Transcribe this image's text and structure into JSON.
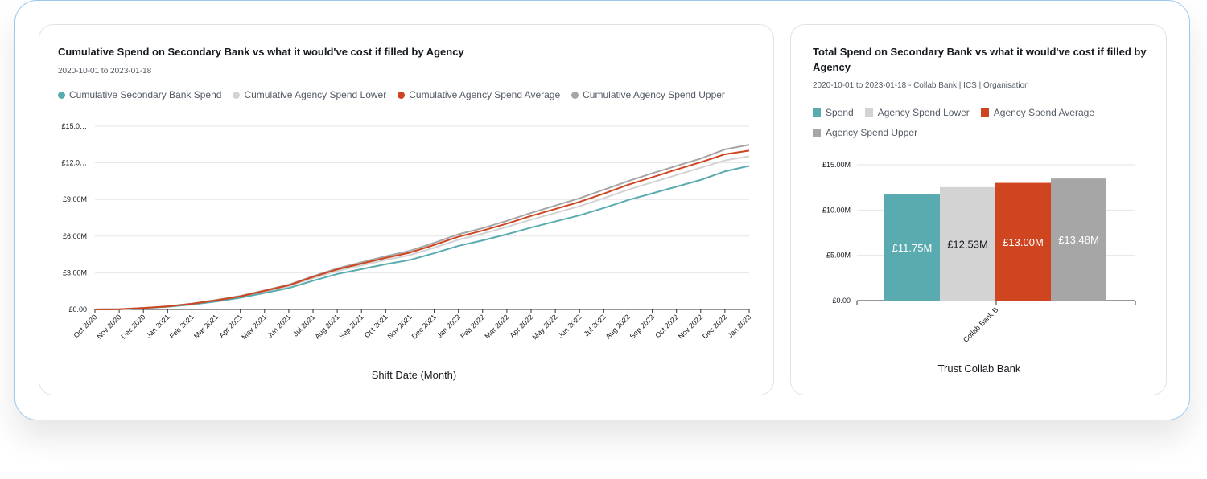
{
  "colors": {
    "spend": "#5aabb0",
    "lower": "#d3d3d3",
    "average": "#cf4520",
    "upper": "#a6a6a6",
    "grid": "#e6e6e6",
    "axis": "#333333"
  },
  "chart_data": [
    {
      "type": "line",
      "title": "Cumulative Spend on Secondary Bank vs what it would've cost if filled by Agency",
      "subtitle": "2020-10-01 to 2023-01-18",
      "xlabel": "Shift Date (Month)",
      "ylabel": "",
      "legend_position": "top-left",
      "grid": true,
      "ylim": [
        0,
        15
      ],
      "y_tick_values": [
        0,
        3,
        6,
        9,
        12,
        15
      ],
      "y_tick_labels": [
        "£0.00",
        "£3.00M",
        "£6.00M",
        "£9.00M",
        "£12.0…",
        "£15.0…"
      ],
      "x": [
        "Oct 2020",
        "Nov 2020",
        "Dec 2020",
        "Jan 2021",
        "Feb 2021",
        "Mar 2021",
        "Apr 2021",
        "May 2021",
        "Jun 2021",
        "Jul 2021",
        "Aug 2021",
        "Sep 2021",
        "Oct 2021",
        "Nov 2021",
        "Dec 2021",
        "Jan 2022",
        "Feb 2022",
        "Mar 2022",
        "Apr 2022",
        "May 2022",
        "Jun 2022",
        "Jul 2022",
        "Aug 2022",
        "Sep 2022",
        "Oct 2022",
        "Nov 2022",
        "Dec 2022",
        "Jan 2023"
      ],
      "series": [
        {
          "name": "Cumulative Secondary Bank Spend",
          "color_key": "spend",
          "marker": "dot",
          "values": [
            0.0,
            0.02,
            0.1,
            0.22,
            0.4,
            0.65,
            0.95,
            1.35,
            1.75,
            2.35,
            2.9,
            3.3,
            3.7,
            4.05,
            4.6,
            5.2,
            5.65,
            6.15,
            6.7,
            7.2,
            7.7,
            8.3,
            8.95,
            9.5,
            10.05,
            10.6,
            11.3,
            11.75
          ]
        },
        {
          "name": "Cumulative Agency Spend Lower",
          "color_key": "lower",
          "marker": "dot",
          "values": [
            0.0,
            0.02,
            0.11,
            0.24,
            0.44,
            0.7,
            1.02,
            1.45,
            1.9,
            2.55,
            3.15,
            3.6,
            4.05,
            4.45,
            5.05,
            5.7,
            6.2,
            6.75,
            7.35,
            7.9,
            8.45,
            9.1,
            9.8,
            10.4,
            11.0,
            11.6,
            12.2,
            12.53
          ]
        },
        {
          "name": "Cumulative Agency Spend Average",
          "color_key": "average",
          "marker": "dot",
          "values": [
            0.0,
            0.02,
            0.12,
            0.25,
            0.46,
            0.74,
            1.07,
            1.52,
            1.98,
            2.66,
            3.28,
            3.75,
            4.22,
            4.65,
            5.28,
            5.95,
            6.45,
            7.02,
            7.65,
            8.22,
            8.8,
            9.48,
            10.2,
            10.82,
            11.45,
            12.05,
            12.7,
            13.0
          ]
        },
        {
          "name": "Cumulative Agency Spend Upper",
          "color_key": "upper",
          "marker": "dot",
          "values": [
            0.0,
            0.02,
            0.12,
            0.26,
            0.48,
            0.77,
            1.1,
            1.56,
            2.03,
            2.72,
            3.36,
            3.86,
            4.35,
            4.8,
            5.45,
            6.15,
            6.65,
            7.25,
            7.9,
            8.5,
            9.1,
            9.8,
            10.5,
            11.15,
            11.75,
            12.35,
            13.1,
            13.48
          ]
        }
      ]
    },
    {
      "type": "bar",
      "title": "Total Spend on Secondary Bank vs what it would've cost if filled by Agency",
      "subtitle": "2020-10-01 to 2023-01-18 - Collab Bank | ICS | Organisation",
      "xlabel": "Trust Collab Bank",
      "ylabel": "",
      "legend_position": "top-left",
      "grid": true,
      "ylim": [
        0,
        15
      ],
      "y_tick_values": [
        0,
        5,
        10,
        15
      ],
      "y_tick_labels": [
        "£0.00",
        "£5.00M",
        "£10.00M",
        "£15.00M"
      ],
      "categories": [
        "Collab Bank B"
      ],
      "series": [
        {
          "name": "Spend",
          "color_key": "spend",
          "marker": "square",
          "values": [
            11.75
          ],
          "labels": [
            "£11.75M"
          ],
          "label_color": "#ffffff"
        },
        {
          "name": "Agency Spend Lower",
          "color_key": "lower",
          "marker": "square",
          "values": [
            12.53
          ],
          "labels": [
            "£12.53M"
          ],
          "label_color": "#16191f"
        },
        {
          "name": "Agency Spend Average",
          "color_key": "average",
          "marker": "square",
          "values": [
            13.0
          ],
          "labels": [
            "£13.00M"
          ],
          "label_color": "#ffffff"
        },
        {
          "name": "Agency Spend Upper",
          "color_key": "upper",
          "marker": "square",
          "values": [
            13.48
          ],
          "labels": [
            "£13.48M"
          ],
          "label_color": "#ffffff"
        }
      ]
    }
  ]
}
